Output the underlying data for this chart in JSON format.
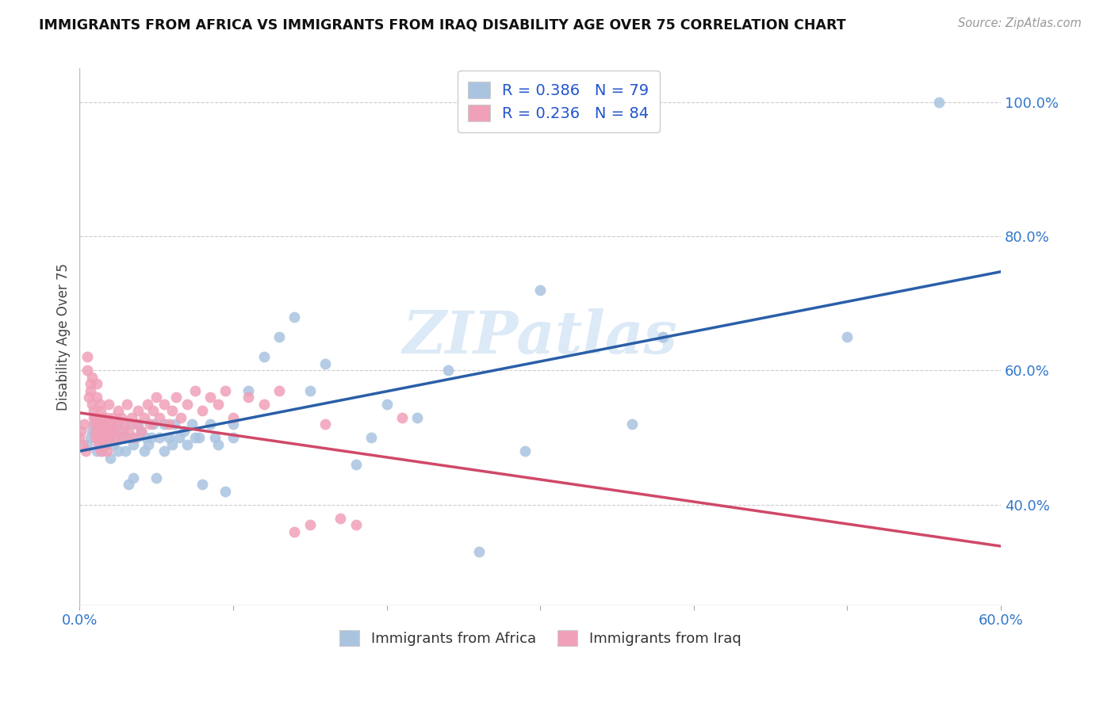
{
  "title": "IMMIGRANTS FROM AFRICA VS IMMIGRANTS FROM IRAQ DISABILITY AGE OVER 75 CORRELATION CHART",
  "source": "Source: ZipAtlas.com",
  "xlabel_africa": "Immigrants from Africa",
  "xlabel_iraq": "Immigrants from Iraq",
  "ylabel": "Disability Age Over 75",
  "xlim": [
    0.0,
    0.6
  ],
  "ylim": [
    0.25,
    1.05
  ],
  "right_yticks": [
    0.4,
    0.6,
    0.8,
    1.0
  ],
  "right_yticklabels": [
    "40.0%",
    "60.0%",
    "80.0%",
    "100.0%"
  ],
  "xticks": [
    0.0,
    0.1,
    0.2,
    0.3,
    0.4,
    0.5,
    0.6
  ],
  "xticklabels": [
    "0.0%",
    "",
    "",
    "",
    "",
    "",
    "60.0%"
  ],
  "africa_R": 0.386,
  "africa_N": 79,
  "iraq_R": 0.236,
  "iraq_N": 84,
  "africa_color": "#aac4e0",
  "africa_line_color": "#2a5fa8",
  "iraq_color": "#f0a0b8",
  "iraq_line_color": "#d04868",
  "watermark": "ZIPatlas",
  "africa_scatter_x": [
    0.005,
    0.007,
    0.008,
    0.009,
    0.01,
    0.01,
    0.01,
    0.01,
    0.011,
    0.012,
    0.012,
    0.013,
    0.014,
    0.015,
    0.015,
    0.016,
    0.017,
    0.018,
    0.019,
    0.02,
    0.02,
    0.021,
    0.022,
    0.025,
    0.025,
    0.027,
    0.028,
    0.03,
    0.03,
    0.032,
    0.033,
    0.035,
    0.035,
    0.037,
    0.038,
    0.04,
    0.042,
    0.043,
    0.045,
    0.047,
    0.048,
    0.05,
    0.052,
    0.055,
    0.055,
    0.058,
    0.06,
    0.062,
    0.065,
    0.068,
    0.07,
    0.073,
    0.075,
    0.078,
    0.08,
    0.085,
    0.088,
    0.09,
    0.095,
    0.1,
    0.1,
    0.11,
    0.12,
    0.13,
    0.14,
    0.15,
    0.16,
    0.18,
    0.19,
    0.2,
    0.22,
    0.24,
    0.26,
    0.29,
    0.3,
    0.36,
    0.38,
    0.5,
    0.56
  ],
  "africa_scatter_y": [
    0.49,
    0.5,
    0.51,
    0.52,
    0.5,
    0.51,
    0.52,
    0.53,
    0.48,
    0.5,
    0.52,
    0.49,
    0.51,
    0.48,
    0.5,
    0.52,
    0.49,
    0.51,
    0.5,
    0.47,
    0.5,
    0.51,
    0.49,
    0.48,
    0.52,
    0.5,
    0.51,
    0.48,
    0.5,
    0.43,
    0.52,
    0.44,
    0.49,
    0.5,
    0.52,
    0.51,
    0.48,
    0.5,
    0.49,
    0.5,
    0.52,
    0.44,
    0.5,
    0.48,
    0.52,
    0.5,
    0.49,
    0.52,
    0.5,
    0.51,
    0.49,
    0.52,
    0.5,
    0.5,
    0.43,
    0.52,
    0.5,
    0.49,
    0.42,
    0.5,
    0.52,
    0.57,
    0.62,
    0.65,
    0.68,
    0.57,
    0.61,
    0.46,
    0.5,
    0.55,
    0.53,
    0.6,
    0.33,
    0.48,
    0.72,
    0.52,
    0.65,
    0.65,
    1.0
  ],
  "iraq_scatter_x": [
    0.0,
    0.001,
    0.002,
    0.003,
    0.004,
    0.005,
    0.005,
    0.006,
    0.007,
    0.007,
    0.008,
    0.008,
    0.009,
    0.009,
    0.01,
    0.01,
    0.01,
    0.01,
    0.011,
    0.011,
    0.012,
    0.012,
    0.012,
    0.013,
    0.013,
    0.013,
    0.014,
    0.014,
    0.015,
    0.015,
    0.015,
    0.016,
    0.016,
    0.017,
    0.017,
    0.018,
    0.018,
    0.019,
    0.019,
    0.02,
    0.02,
    0.021,
    0.022,
    0.023,
    0.024,
    0.025,
    0.026,
    0.027,
    0.028,
    0.03,
    0.031,
    0.032,
    0.034,
    0.035,
    0.037,
    0.038,
    0.04,
    0.042,
    0.044,
    0.046,
    0.048,
    0.05,
    0.052,
    0.055,
    0.058,
    0.06,
    0.063,
    0.066,
    0.07,
    0.075,
    0.08,
    0.085,
    0.09,
    0.095,
    0.1,
    0.11,
    0.12,
    0.13,
    0.14,
    0.15,
    0.16,
    0.17,
    0.18,
    0.21
  ],
  "iraq_scatter_y": [
    0.5,
    0.51,
    0.49,
    0.52,
    0.48,
    0.6,
    0.62,
    0.56,
    0.58,
    0.57,
    0.55,
    0.59,
    0.53,
    0.54,
    0.5,
    0.51,
    0.52,
    0.53,
    0.56,
    0.58,
    0.49,
    0.5,
    0.52,
    0.51,
    0.53,
    0.55,
    0.48,
    0.54,
    0.5,
    0.52,
    0.53,
    0.49,
    0.51,
    0.5,
    0.52,
    0.48,
    0.53,
    0.51,
    0.55,
    0.5,
    0.52,
    0.51,
    0.53,
    0.5,
    0.52,
    0.54,
    0.51,
    0.53,
    0.5,
    0.52,
    0.55,
    0.51,
    0.53,
    0.5,
    0.52,
    0.54,
    0.51,
    0.53,
    0.55,
    0.52,
    0.54,
    0.56,
    0.53,
    0.55,
    0.52,
    0.54,
    0.56,
    0.53,
    0.55,
    0.57,
    0.54,
    0.56,
    0.55,
    0.57,
    0.53,
    0.56,
    0.55,
    0.57,
    0.36,
    0.37,
    0.52,
    0.38,
    0.37,
    0.53
  ]
}
